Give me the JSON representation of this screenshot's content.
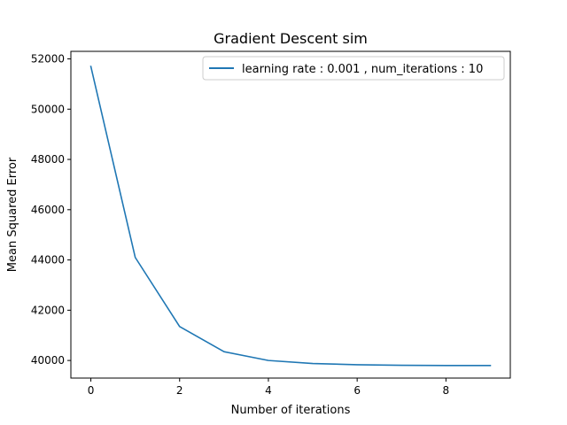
{
  "chart_data": {
    "type": "line",
    "title": "Gradient Descent sim",
    "xlabel": "Number of iterations",
    "ylabel": "Mean Squared Error",
    "x": [
      0,
      1,
      2,
      3,
      4,
      5,
      6,
      7,
      8,
      9
    ],
    "series": [
      {
        "name": "learning rate : 0.001 , num_iterations : 10",
        "values": [
          51700,
          44100,
          41350,
          40350,
          40000,
          39880,
          39830,
          39810,
          39800,
          39800
        ],
        "color": "#1f77b4"
      }
    ],
    "xlim": [
      -0.45,
      9.45
    ],
    "ylim": [
      39300,
      52300
    ],
    "xticks": [
      0,
      2,
      4,
      6,
      8
    ],
    "yticks": [
      40000,
      42000,
      44000,
      46000,
      48000,
      50000,
      52000
    ],
    "grid": false,
    "legend_position": "top-right"
  }
}
